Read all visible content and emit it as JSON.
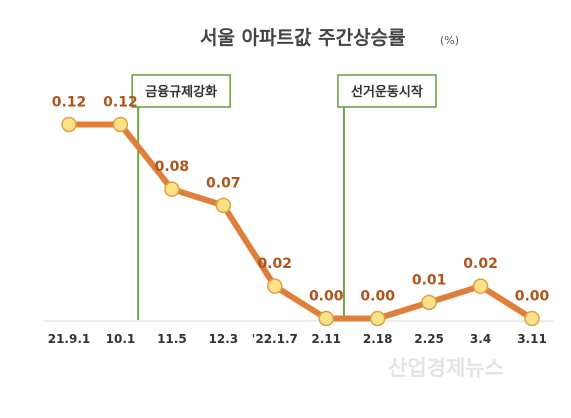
{
  "chart_data": {
    "type": "line",
    "title": "서울 아파트값 주간상승률",
    "unit": "(%)",
    "categories": [
      "21.9.1",
      "10.1",
      "11.5",
      "12.3",
      "'22.1.7",
      "2.11",
      "2.18",
      "2.25",
      "3.4",
      "3.11"
    ],
    "series": [
      {
        "values": [
          0.12,
          0.12,
          0.08,
          0.07,
          0.02,
          0.0,
          0.0,
          0.01,
          0.02,
          0.0
        ],
        "labels": [
          "0.12",
          "0.12",
          "0.08",
          "0.07",
          "0.02",
          "0.00",
          "0.00",
          "0.01",
          "0.02",
          "0.00"
        ]
      }
    ],
    "ylim": [
      0,
      0.14
    ],
    "grid": false,
    "annotations": [
      {
        "text": "금융규제강화",
        "between": [
          "10.1",
          "11.5"
        ]
      },
      {
        "text": "선거운동시작",
        "between": [
          "2.11",
          "2.18"
        ]
      }
    ],
    "colors": {
      "line": "#e07f3c",
      "marker_fill": "#fbe287",
      "marker_stroke": "#e0a046",
      "label": "#b0541c",
      "annotation": "#70a448",
      "axis": "#d9d9d9"
    }
  },
  "watermark": "산업경제뉴스"
}
